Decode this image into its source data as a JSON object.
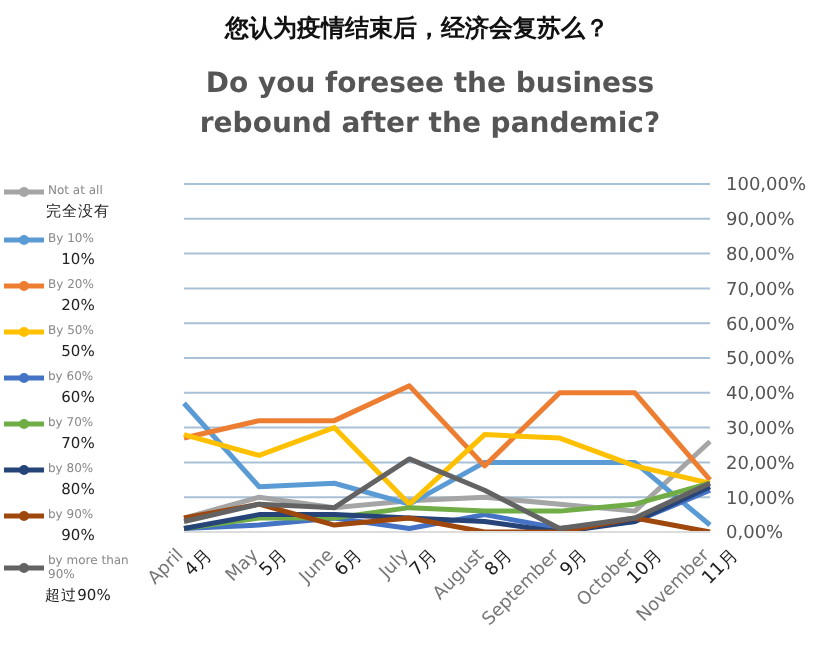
{
  "chart_data": {
    "type": "line",
    "title": "您认为疫情结束后，经济会复苏么？",
    "subtitle": "Do you foresee the business rebound after the pandemic?",
    "categories": [
      "April\n4月",
      "May\n5月",
      "June\n6月",
      "July\n7月",
      "August\n8月",
      "September\n9月",
      "October\n10月",
      "November\n11月"
    ],
    "series": [
      {
        "name": "Not at all\n完全没有",
        "color": "#a5a5a5",
        "values": [
          4,
          10,
          7,
          9,
          10,
          8,
          6,
          26
        ]
      },
      {
        "name": "By 10%\n10%",
        "color": "#5b9bd5",
        "values": [
          37,
          13,
          14,
          8,
          20,
          20,
          20,
          2
        ]
      },
      {
        "name": "By 20%\n20%",
        "color": "#ed7d31",
        "values": [
          27,
          32,
          32,
          42,
          19,
          40,
          40,
          15
        ]
      },
      {
        "name": "By 50%\n50%",
        "color": "#ffc000",
        "values": [
          28,
          22,
          30,
          8,
          28,
          27,
          19,
          14
        ]
      },
      {
        "name": "by 60%\n60%",
        "color": "#4472c4",
        "values": [
          1,
          2,
          4,
          1,
          5,
          1,
          3,
          12
        ]
      },
      {
        "name": "by 70%\n70%",
        "color": "#70ad47",
        "values": [
          1,
          4,
          4,
          7,
          6,
          6,
          8,
          14
        ]
      },
      {
        "name": "by 80%\n80%",
        "color": "#264478",
        "values": [
          1,
          5,
          5,
          4,
          3,
          0,
          3,
          13
        ]
      },
      {
        "name": "by 90%\n90%",
        "color": "#9e480e",
        "values": [
          4,
          8,
          2,
          4,
          0,
          0,
          4,
          0
        ]
      },
      {
        "name": "by more than 90%\n超过90%",
        "color": "#636363",
        "values": [
          3,
          8,
          7,
          21,
          12,
          1,
          4,
          14
        ]
      }
    ],
    "ylim": [
      0,
      100
    ],
    "yticks": [
      {
        "value": 0,
        "label": "0,00%"
      },
      {
        "value": 10,
        "label": "10,00%"
      },
      {
        "value": 20,
        "label": "20,00%"
      },
      {
        "value": 30,
        "label": "30,00%"
      },
      {
        "value": 40,
        "label": "40,00%"
      },
      {
        "value": 50,
        "label": "50,00%"
      },
      {
        "value": 60,
        "label": "60,00%"
      },
      {
        "value": 70,
        "label": "70,00%"
      },
      {
        "value": 80,
        "label": "80,00%"
      },
      {
        "value": 90,
        "label": "90,00%"
      },
      {
        "value": 100,
        "label": "100,00%"
      }
    ],
    "grid": "y",
    "legend": "left",
    "marker": "none",
    "line_style": "solid"
  }
}
